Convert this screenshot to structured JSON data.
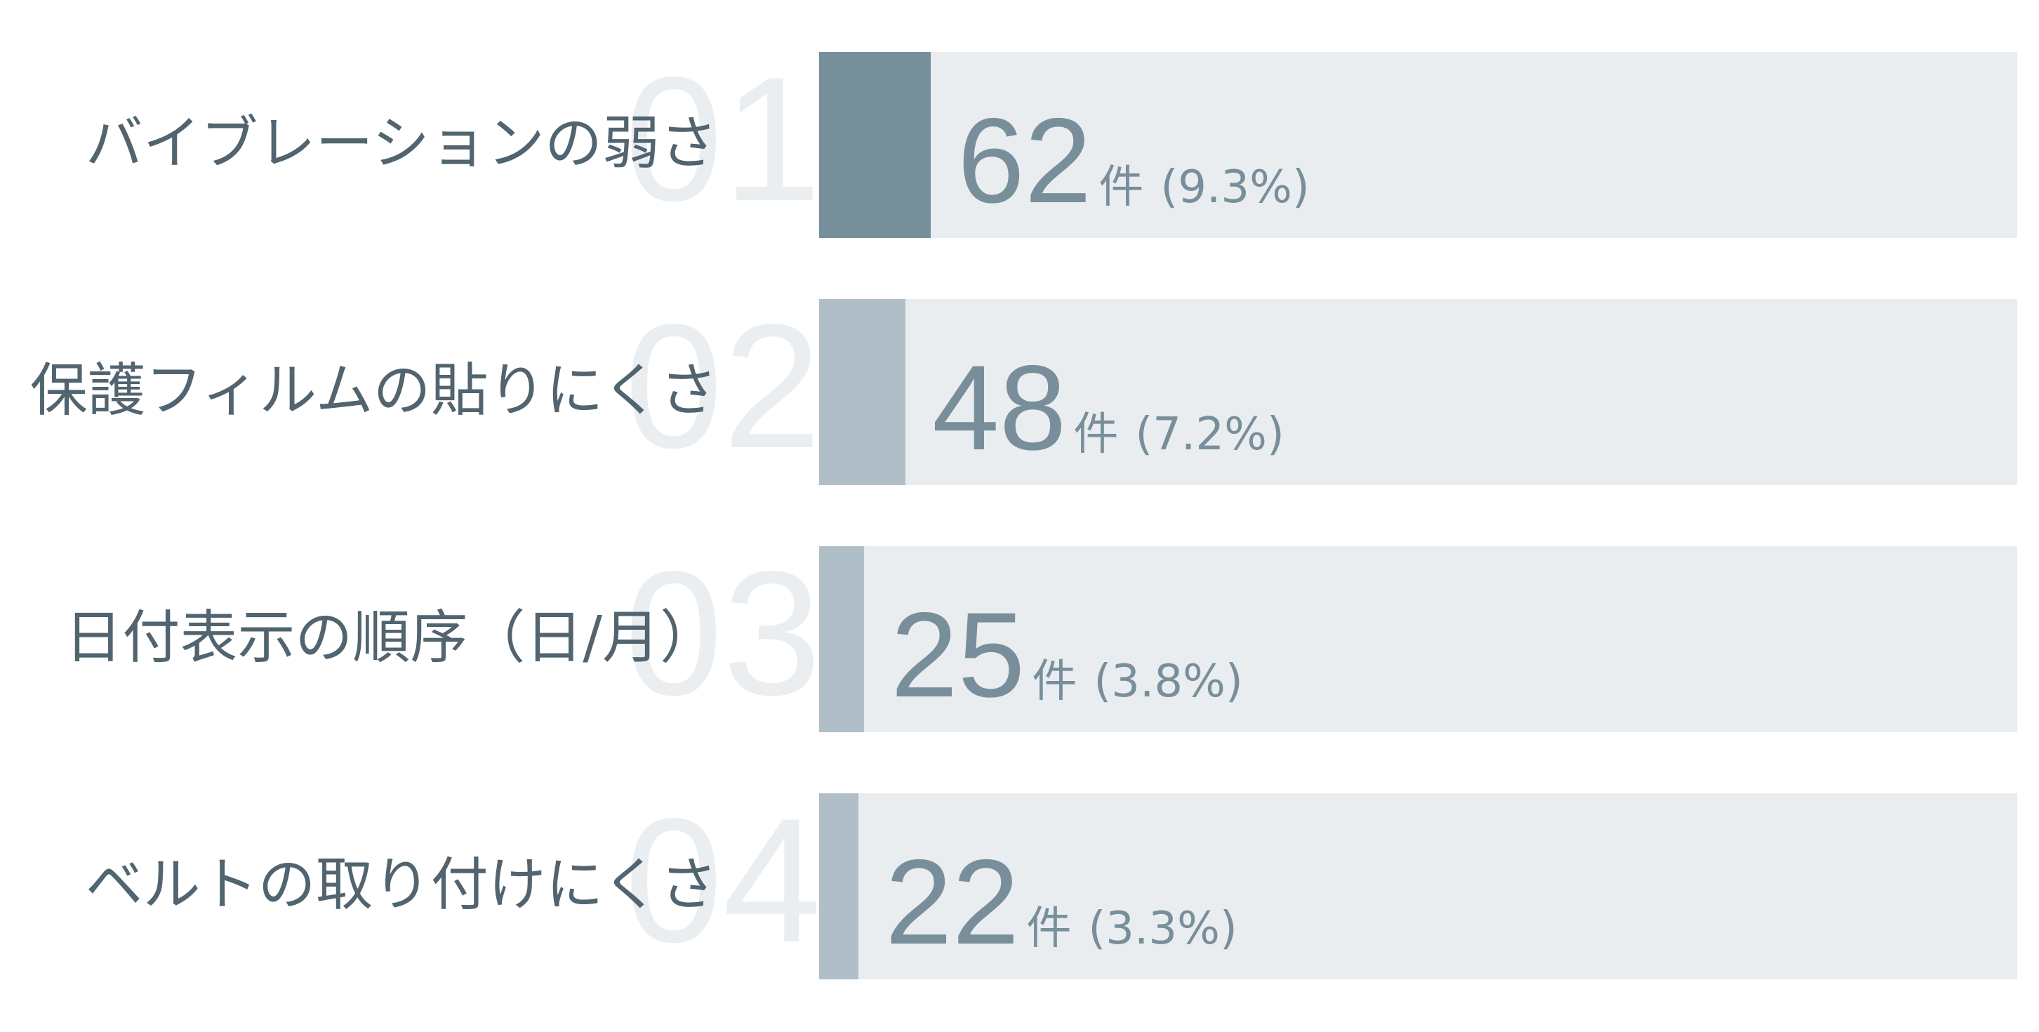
{
  "chart_data": {
    "type": "bar",
    "orientation": "horizontal",
    "unit": "件",
    "xlim": [
      0,
      665
    ],
    "categories": [
      "バイブレーションの弱さ",
      "保護フィルムの貼りにくさ",
      "日付表示の順序（日/月）",
      "ベルトの取り付けにくさ"
    ],
    "ranks": [
      "01",
      "02",
      "03",
      "04"
    ],
    "values": [
      62,
      48,
      25,
      22
    ],
    "percents": [
      "(9.3%)",
      "(7.2%)",
      "(3.8%)",
      "(3.3%)"
    ],
    "colors": {
      "highlight": "#778f9b",
      "bar": "#b0bfc7",
      "track": "#e9edf0",
      "label": "#51646f",
      "value": "#788f9b",
      "rank": "#ebeef1"
    }
  }
}
